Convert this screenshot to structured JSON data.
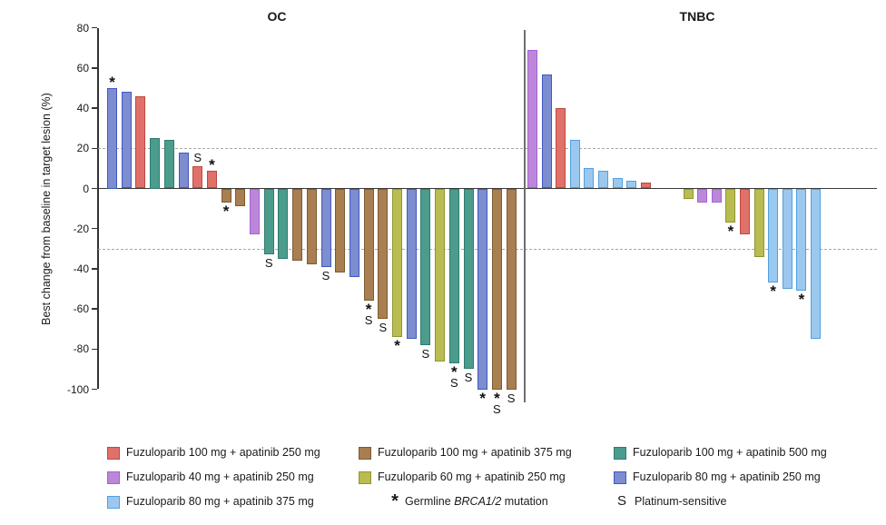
{
  "chart_data": {
    "type": "bar",
    "subtype": "waterfall",
    "ylabel": "Best change from baseline in target lesion (%)",
    "ylim": [
      -100,
      80
    ],
    "yticks": [
      80,
      60,
      40,
      20,
      0,
      -20,
      -40,
      -60,
      -80,
      -100
    ],
    "reference_lines": [
      20,
      -30
    ],
    "grid": "off",
    "legend_position": "bottom",
    "groups": {
      "f100a250": {
        "label": "Fuzuloparib 100 mg + apatinib 250 mg",
        "fill": "#e0716a",
        "stroke": "#ba4a42"
      },
      "f40a250": {
        "label": "Fuzuloparib 40 mg + apatinib 250 mg",
        "fill": "#bc87d9",
        "stroke": "#a65fd8"
      },
      "f80a375": {
        "label": "Fuzuloparib 80 mg + apatinib 375 mg",
        "fill": "#9ac8ee",
        "stroke": "#539fe0"
      },
      "f100a375": {
        "label": "Fuzuloparib 100 mg + apatinib 375 mg",
        "fill": "#a97e50",
        "stroke": "#7d5a33"
      },
      "f60a250": {
        "label": "Fuzuloparib 60 mg + apatinib 250 mg",
        "fill": "#b9bc50",
        "stroke": "#8f9631"
      },
      "f100a500": {
        "label": "Fuzuloparib 100 mg + apatinib 500 mg",
        "fill": "#4c9c8d",
        "stroke": "#2e7c6c"
      },
      "f80a250": {
        "label": "Fuzuloparib 80 mg + apatinib 250 mg",
        "fill": "#7c8dd0",
        "stroke": "#4157c4"
      }
    },
    "markers": {
      "star": {
        "symbol": "*",
        "label_prefix": "Germline ",
        "label_italic": "BRCA1/2",
        "label_suffix": " mutation"
      },
      "s": {
        "symbol": "S",
        "label": "Platinum-sensitive"
      }
    },
    "panels": [
      {
        "title": "OC",
        "bars": [
          {
            "group": "f80a250",
            "value": 50,
            "marks": [
              "*"
            ]
          },
          {
            "group": "f80a250",
            "value": 48,
            "marks": []
          },
          {
            "group": "f100a250",
            "value": 46,
            "marks": []
          },
          {
            "group": "f100a500",
            "value": 25,
            "marks": []
          },
          {
            "group": "f100a500",
            "value": 24,
            "marks": []
          },
          {
            "group": "f80a250",
            "value": 18,
            "marks": []
          },
          {
            "group": "f100a250",
            "value": 11,
            "marks": [
              "S"
            ]
          },
          {
            "group": "f100a250",
            "value": 9,
            "marks": [
              "*"
            ]
          },
          {
            "group": "f100a375",
            "value": -7,
            "marks": [
              "*"
            ]
          },
          {
            "group": "f100a375",
            "value": -9,
            "marks": []
          },
          {
            "group": "f40a250",
            "value": -23,
            "marks": []
          },
          {
            "group": "f100a500",
            "value": -33,
            "marks": [
              "S"
            ]
          },
          {
            "group": "f100a500",
            "value": -35,
            "marks": []
          },
          {
            "group": "f100a375",
            "value": -36,
            "marks": []
          },
          {
            "group": "f100a375",
            "value": -38,
            "marks": []
          },
          {
            "group": "f80a250",
            "value": -39,
            "marks": [
              "S"
            ]
          },
          {
            "group": "f100a375",
            "value": -42,
            "marks": []
          },
          {
            "group": "f80a250",
            "value": -44,
            "marks": []
          },
          {
            "group": "f100a375",
            "value": -56,
            "marks": [
              "*",
              "S"
            ]
          },
          {
            "group": "f100a375",
            "value": -65,
            "marks": [
              "S"
            ]
          },
          {
            "group": "f60a250",
            "value": -74,
            "marks": [
              "*"
            ]
          },
          {
            "group": "f80a250",
            "value": -75,
            "marks": []
          },
          {
            "group": "f100a500",
            "value": -78,
            "marks": [
              "S"
            ]
          },
          {
            "group": "f60a250",
            "value": -86,
            "marks": []
          },
          {
            "group": "f100a500",
            "value": -87,
            "marks": [
              "*",
              "S"
            ]
          },
          {
            "group": "f100a500",
            "value": -90,
            "marks": [
              "S"
            ]
          },
          {
            "group": "f80a250",
            "value": -100,
            "marks": [
              "*"
            ]
          },
          {
            "group": "f100a375",
            "value": -100,
            "marks": [
              "*",
              "S"
            ]
          },
          {
            "group": "f100a375",
            "value": -100,
            "marks": [
              "S"
            ]
          }
        ]
      },
      {
        "title": "TNBC",
        "bars": [
          {
            "group": "f40a250",
            "value": 69,
            "marks": []
          },
          {
            "group": "f80a250",
            "value": 57,
            "marks": []
          },
          {
            "group": "f100a250",
            "value": 40,
            "marks": []
          },
          {
            "group": "f80a375",
            "value": 24,
            "marks": []
          },
          {
            "group": "f80a375",
            "value": 10,
            "marks": []
          },
          {
            "group": "f80a375",
            "value": 9,
            "marks": []
          },
          {
            "group": "f80a375",
            "value": 5,
            "marks": []
          },
          {
            "group": "f80a375",
            "value": 4,
            "marks": []
          },
          {
            "group": "f100a250",
            "value": 3,
            "marks": []
          },
          {
            "group": null,
            "value": 0,
            "marks": []
          },
          {
            "group": null,
            "value": 0,
            "marks": []
          },
          {
            "group": "f60a250",
            "value": -5,
            "marks": []
          },
          {
            "group": "f40a250",
            "value": -7,
            "marks": []
          },
          {
            "group": "f40a250",
            "value": -7,
            "marks": []
          },
          {
            "group": "f60a250",
            "value": -17,
            "marks": [
              "*"
            ]
          },
          {
            "group": "f100a250",
            "value": -23,
            "marks": []
          },
          {
            "group": "f60a250",
            "value": -34,
            "marks": []
          },
          {
            "group": "f80a375",
            "value": -47,
            "marks": [
              "*"
            ]
          },
          {
            "group": "f80a375",
            "value": -50,
            "marks": []
          },
          {
            "group": "f80a375",
            "value": -51,
            "marks": [
              "*"
            ]
          },
          {
            "group": "f80a375",
            "value": -75,
            "marks": []
          }
        ]
      }
    ],
    "legend_columns": [
      [
        "f100a250",
        "f40a250",
        "f80a375"
      ],
      [
        "f100a375",
        "f60a250",
        "marker:star"
      ],
      [
        "f100a500",
        "f80a250",
        "marker:s"
      ]
    ]
  }
}
